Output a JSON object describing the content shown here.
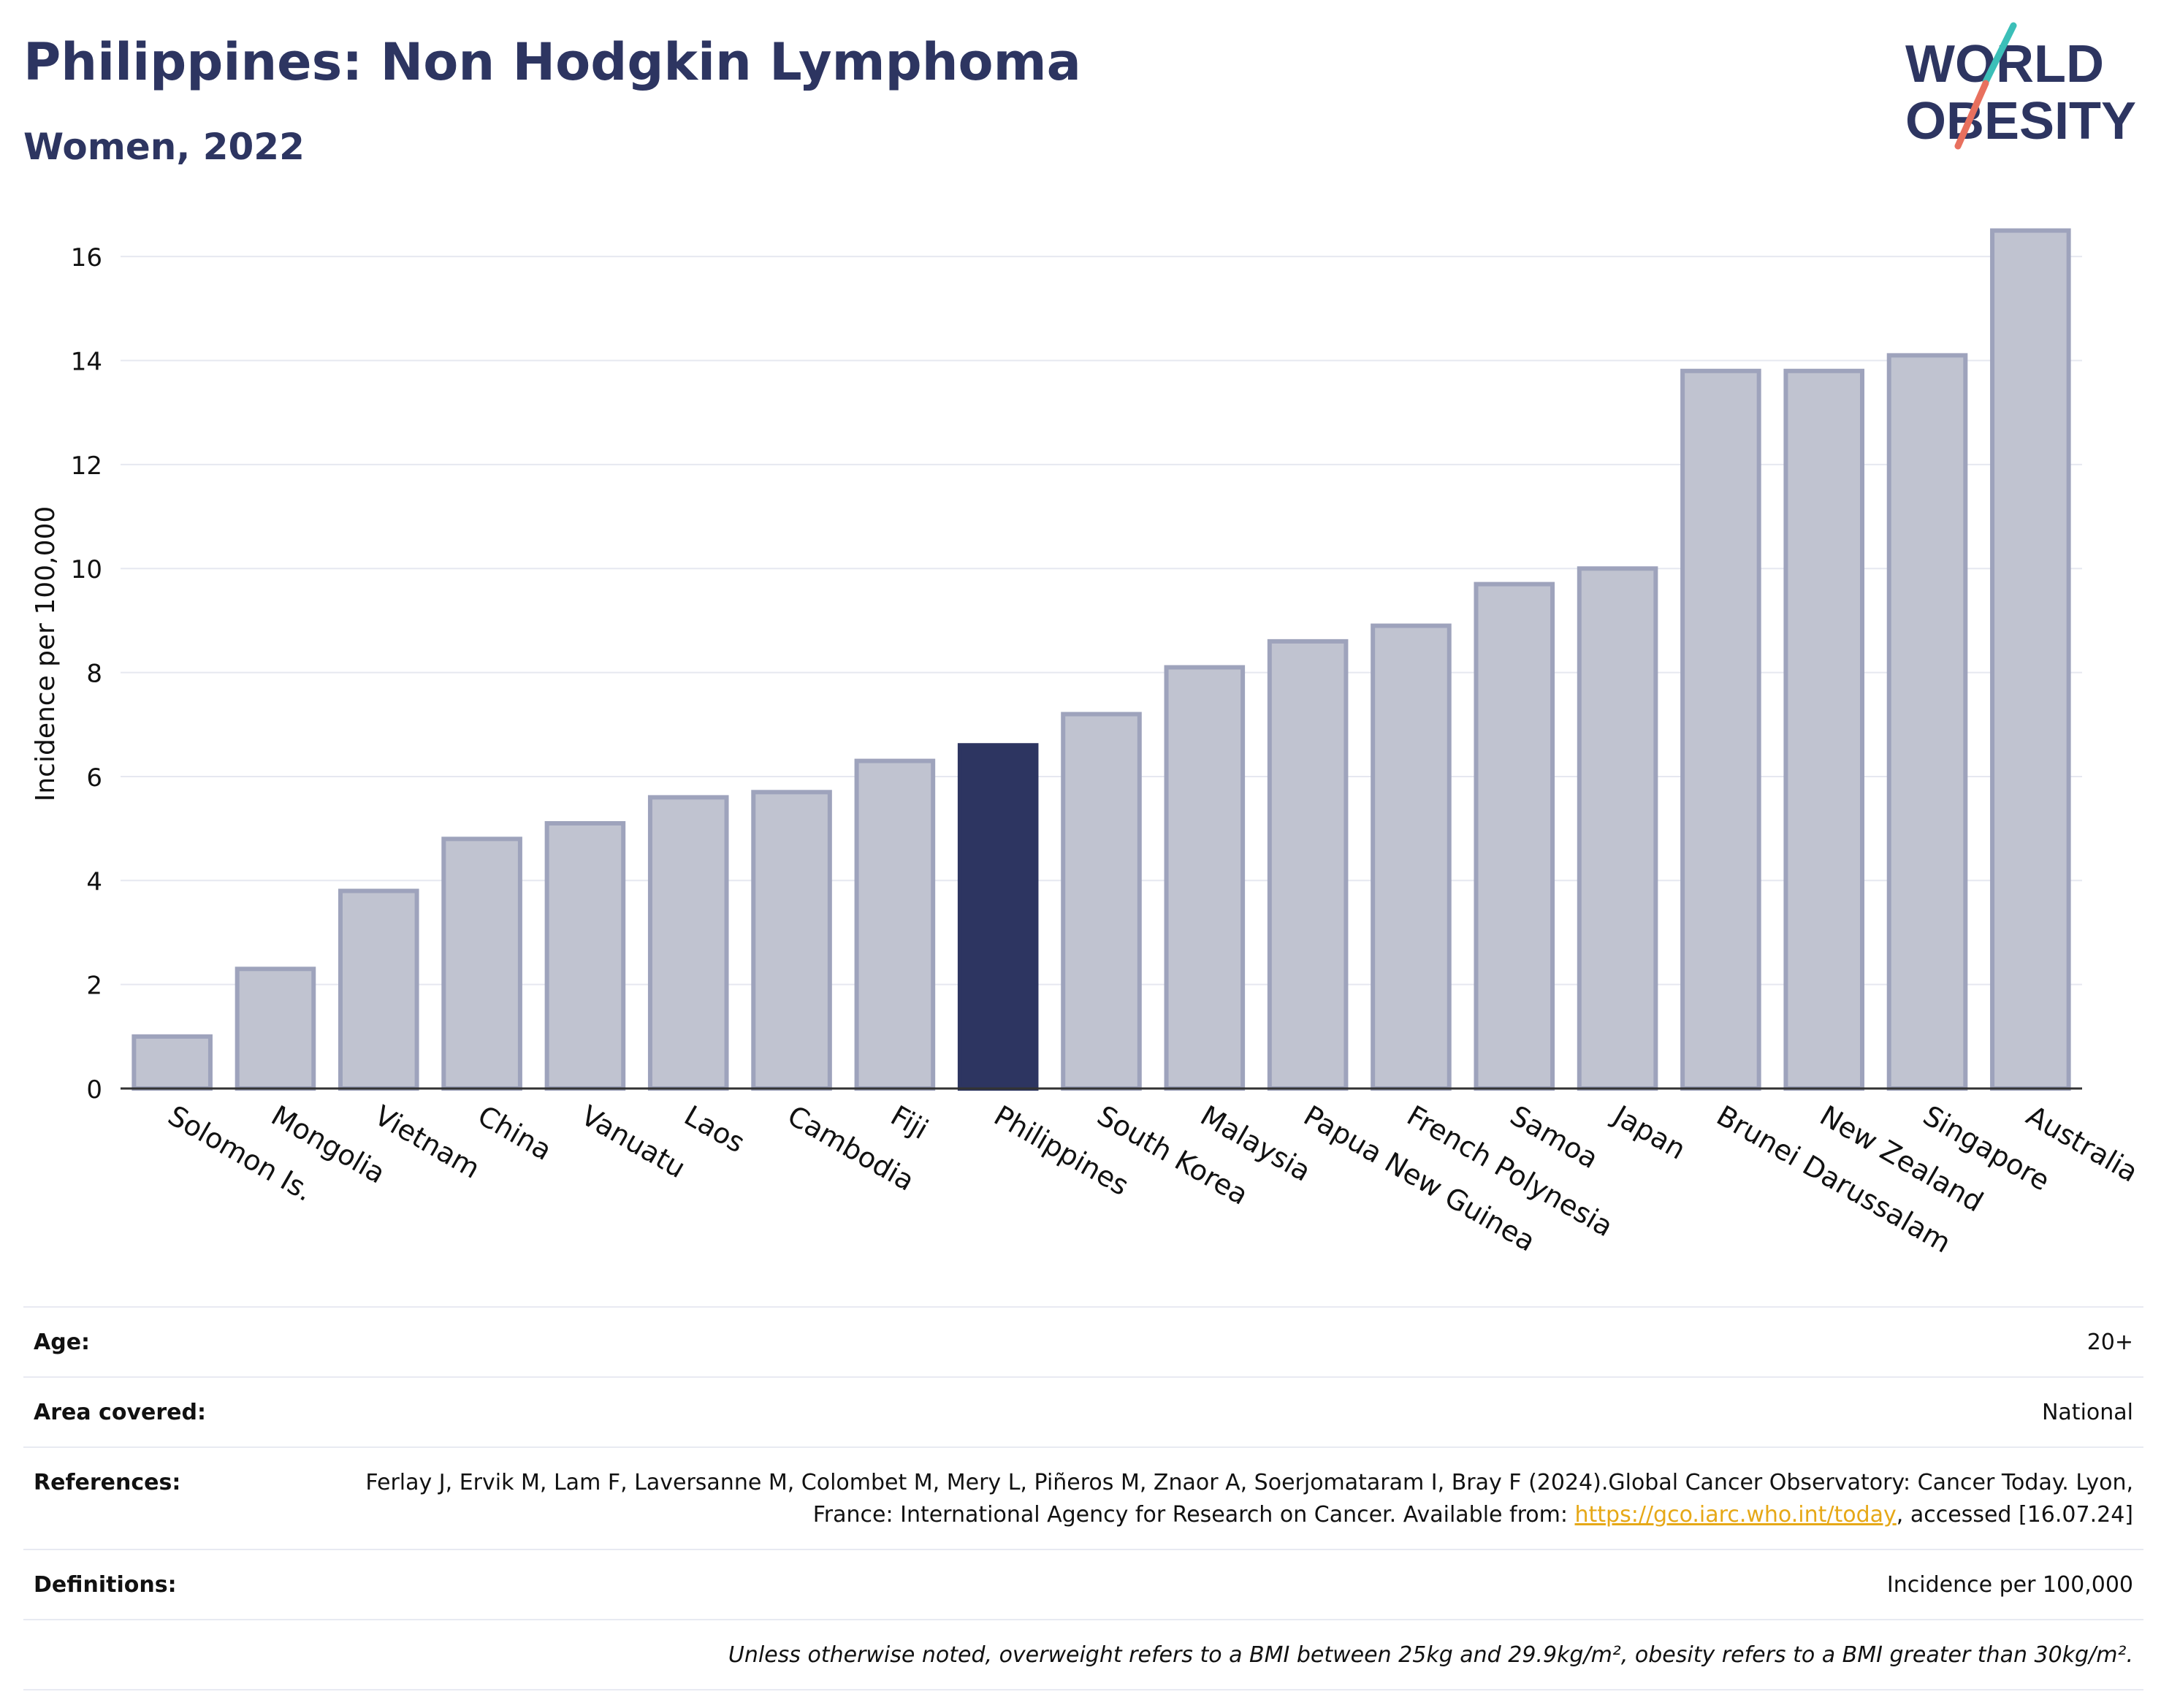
{
  "header": {
    "title": "Philippines: Non Hodgkin Lymphoma",
    "subtitle": "Women, 2022"
  },
  "logo": {
    "line1": "WORLD",
    "line2": "OBESITY",
    "accent_teal": "#3bbfb8",
    "accent_coral": "#e8705e"
  },
  "chart_data": {
    "type": "bar",
    "title": "Philippines: Non Hodgkin Lymphoma",
    "subtitle": "Women, 2022",
    "ylabel": "Incidence per 100,000",
    "xlabel": "",
    "ylim": [
      0,
      17
    ],
    "yticks": [
      0,
      2,
      4,
      6,
      8,
      10,
      12,
      14,
      16
    ],
    "grid": true,
    "highlight": "Philippines",
    "highlight_color": "#2d3561",
    "bar_color": "#c0c3d0",
    "categories": [
      "Solomon Is.",
      "Mongolia",
      "Vietnam",
      "China",
      "Vanuatu",
      "Laos",
      "Cambodia",
      "Fiji",
      "Philippines",
      "South Korea",
      "Malaysia",
      "Papua New Guinea",
      "French Polynesia",
      "Samoa",
      "Japan",
      "Brunei Darussalam",
      "New Zealand",
      "Singapore",
      "Australia"
    ],
    "values": [
      1.0,
      2.3,
      3.8,
      4.8,
      5.1,
      5.6,
      5.7,
      6.3,
      6.6,
      7.2,
      8.1,
      8.6,
      8.9,
      9.7,
      10.0,
      13.8,
      13.8,
      14.1,
      16.5
    ]
  },
  "meta": {
    "age_label": "Age:",
    "age_value": "20+",
    "area_label": "Area covered:",
    "area_value": "National",
    "references_label": "References:",
    "references_text_1": "Ferlay J, Ervik M, Lam F, Laversanne M, Colombet M, Mery L, Piñeros M, Znaor A, Soerjomataram I, Bray F (2024).Global Cancer Observatory: Cancer Today. Lyon, France: International Agency for Research on Cancer. Available from: ",
    "references_link": "https://gco.iarc.who.int/today",
    "references_text_2": ", accessed [16.07.24]",
    "definitions_label": "Definitions:",
    "definitions_value": "Incidence per 100,000",
    "note": "Unless otherwise noted, overweight refers to a BMI between 25kg and 29.9kg/m², obesity refers to a BMI greater than 30kg/m²."
  }
}
